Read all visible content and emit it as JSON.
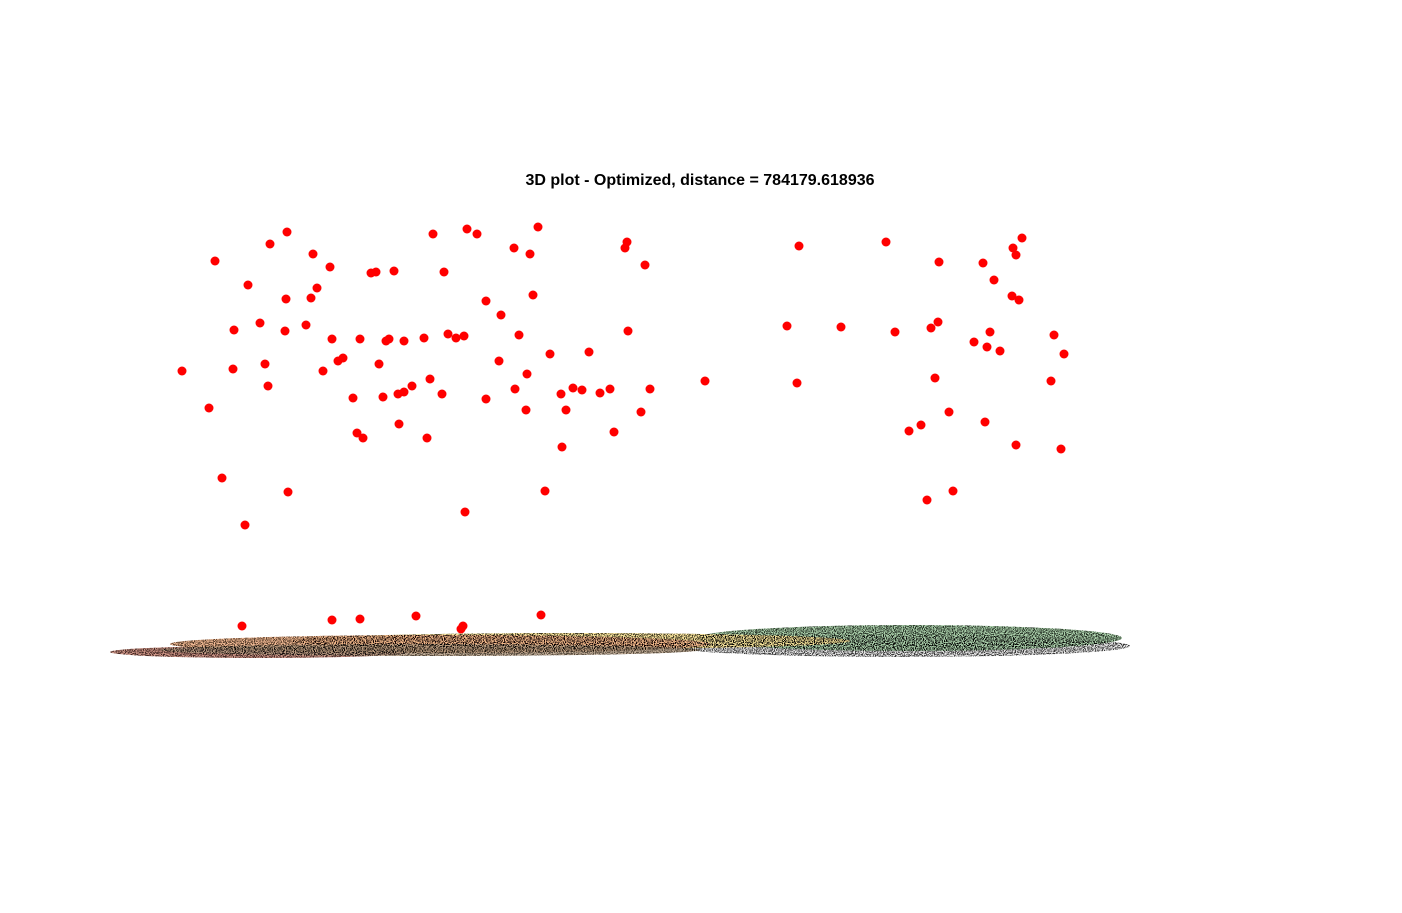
{
  "chart_data": {
    "type": "scatter",
    "title": "3D plot - Optimized, distance = 784179.618936",
    "xlabel": "",
    "ylabel": "",
    "grid": false,
    "legend": "none",
    "colors": {
      "points": "#ff0000",
      "map_red": "#c98a7a",
      "map_orange": "#f2b48a",
      "map_yellow": "#fbe59a",
      "map_green": "#a8cfa8",
      "map_gray": "#e6e6e6",
      "map_brown": "#b39a80"
    },
    "points": [
      [
        182,
        371
      ],
      [
        209,
        408
      ],
      [
        215,
        261
      ],
      [
        222,
        478
      ],
      [
        233,
        369
      ],
      [
        234,
        330
      ],
      [
        242,
        626
      ],
      [
        245,
        525
      ],
      [
        248,
        285
      ],
      [
        260,
        323
      ],
      [
        265,
        364
      ],
      [
        268,
        386
      ],
      [
        270,
        244
      ],
      [
        285,
        331
      ],
      [
        286,
        299
      ],
      [
        287,
        232
      ],
      [
        288,
        492
      ],
      [
        306,
        325
      ],
      [
        311,
        298
      ],
      [
        313,
        254
      ],
      [
        317,
        288
      ],
      [
        323,
        371
      ],
      [
        330,
        267
      ],
      [
        332,
        620
      ],
      [
        332,
        339
      ],
      [
        338,
        361
      ],
      [
        343,
        358
      ],
      [
        353,
        398
      ],
      [
        357,
        433
      ],
      [
        360,
        619
      ],
      [
        360,
        339
      ],
      [
        363,
        438
      ],
      [
        371,
        273
      ],
      [
        376,
        272
      ],
      [
        379,
        364
      ],
      [
        383,
        397
      ],
      [
        386,
        341
      ],
      [
        389,
        339
      ],
      [
        394,
        271
      ],
      [
        398,
        394
      ],
      [
        399,
        424
      ],
      [
        404,
        341
      ],
      [
        404,
        392
      ],
      [
        412,
        386
      ],
      [
        416,
        616
      ],
      [
        424,
        338
      ],
      [
        427,
        438
      ],
      [
        430,
        379
      ],
      [
        433,
        234
      ],
      [
        442,
        394
      ],
      [
        444,
        272
      ],
      [
        448,
        334
      ],
      [
        456,
        338
      ],
      [
        461,
        629
      ],
      [
        463,
        626
      ],
      [
        464,
        336
      ],
      [
        465,
        512
      ],
      [
        467,
        229
      ],
      [
        477,
        234
      ],
      [
        486,
        301
      ],
      [
        486,
        399
      ],
      [
        499,
        361
      ],
      [
        501,
        315
      ],
      [
        514,
        248
      ],
      [
        515,
        389
      ],
      [
        519,
        335
      ],
      [
        526,
        410
      ],
      [
        527,
        374
      ],
      [
        530,
        254
      ],
      [
        533,
        295
      ],
      [
        538,
        227
      ],
      [
        541,
        615
      ],
      [
        545,
        491
      ],
      [
        550,
        354
      ],
      [
        561,
        394
      ],
      [
        562,
        447
      ],
      [
        566,
        410
      ],
      [
        573,
        388
      ],
      [
        582,
        390
      ],
      [
        589,
        352
      ],
      [
        600,
        393
      ],
      [
        610,
        389
      ],
      [
        614,
        432
      ],
      [
        625,
        248
      ],
      [
        627,
        242
      ],
      [
        628,
        331
      ],
      [
        641,
        412
      ],
      [
        645,
        265
      ],
      [
        650,
        389
      ],
      [
        705,
        381
      ],
      [
        787,
        326
      ],
      [
        797,
        383
      ],
      [
        799,
        246
      ],
      [
        841,
        327
      ],
      [
        886,
        242
      ],
      [
        895,
        332
      ],
      [
        909,
        431
      ],
      [
        921,
        425
      ],
      [
        927,
        500
      ],
      [
        931,
        328
      ],
      [
        935,
        378
      ],
      [
        938,
        322
      ],
      [
        939,
        262
      ],
      [
        949,
        412
      ],
      [
        953,
        491
      ],
      [
        974,
        342
      ],
      [
        983,
        263
      ],
      [
        985,
        422
      ],
      [
        987,
        347
      ],
      [
        990,
        332
      ],
      [
        994,
        280
      ],
      [
        1000,
        351
      ],
      [
        1012,
        296
      ],
      [
        1013,
        248
      ],
      [
        1016,
        445
      ],
      [
        1016,
        255
      ],
      [
        1019,
        300
      ],
      [
        1022,
        238
      ],
      [
        1051,
        381
      ],
      [
        1054,
        335
      ],
      [
        1061,
        449
      ],
      [
        1064,
        354
      ]
    ]
  }
}
